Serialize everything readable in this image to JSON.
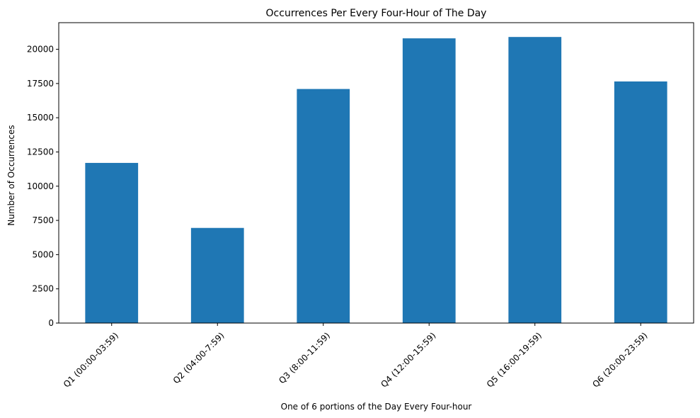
{
  "chart_data": {
    "type": "bar",
    "title": "Occurrences Per Every Four-Hour of The Day",
    "xlabel": "One of 6 portions of the Day Every Four-hour",
    "ylabel": "Number of Occurrences",
    "categories": [
      "Q1 (00:00-03:59)",
      "Q2 (04:00-7:59)",
      "Q3 (8:00-11:59)",
      "Q4 (12:00-15:59)",
      "Q5 (16:00-19:59)",
      "Q6 (20:00-23:59)"
    ],
    "values": [
      11700,
      6950,
      17100,
      20800,
      20900,
      17650
    ],
    "ylim": [
      0,
      21945
    ],
    "yticks": [
      0,
      2500,
      5000,
      7500,
      10000,
      12500,
      15000,
      17500,
      20000
    ],
    "grid": false,
    "legend": "none",
    "bar_color": "#1f77b4",
    "x_tick_rotation_deg": 45
  }
}
